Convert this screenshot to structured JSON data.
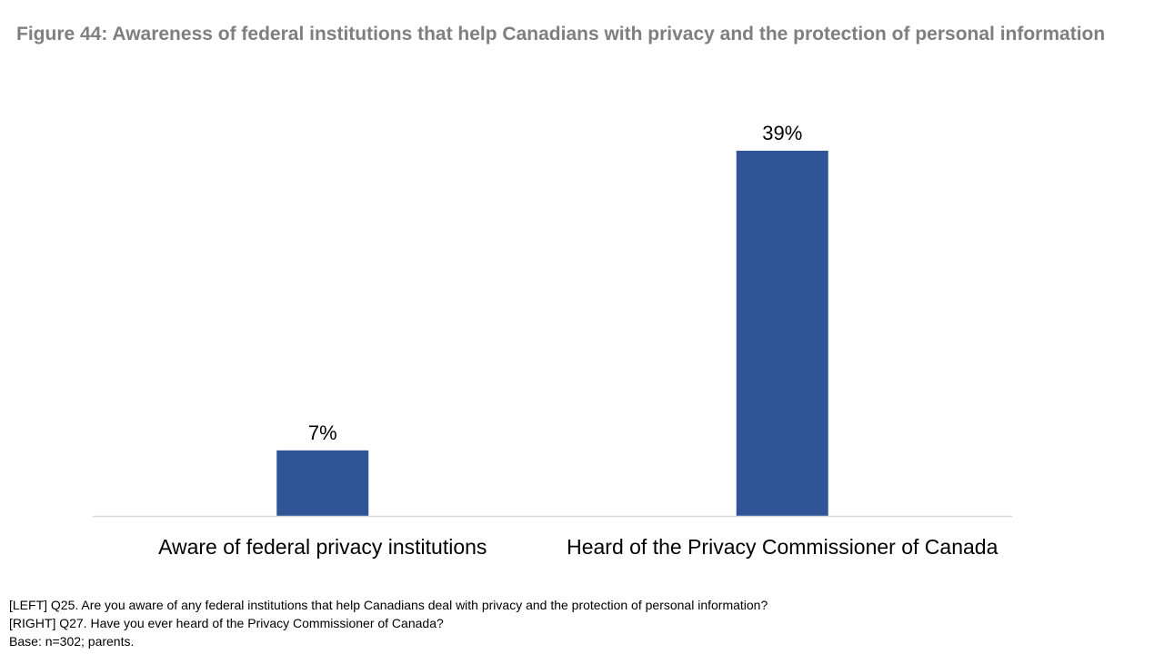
{
  "chart_data": {
    "type": "bar",
    "title": "Figure 44: Awareness of federal institutions that help Canadians with privacy and the protection of personal information",
    "categories": [
      "Aware of federal privacy institutions",
      "Heard of the Privacy Commissioner of Canada"
    ],
    "values": [
      7,
      39
    ],
    "data_labels": [
      "7%",
      "39%"
    ],
    "xlabel": "",
    "ylabel": "",
    "ylim": [
      0,
      42
    ],
    "grid": false,
    "legend": "none",
    "bar_color": "#2f5597",
    "axis_color": "#d9d9d9"
  },
  "footnotes": {
    "left_question": "[LEFT] Q25. Are you aware of any federal institutions that help Canadians deal with privacy and the protection of personal information?",
    "right_question": "[RIGHT] Q27. Have you ever heard of the Privacy Commissioner of Canada?",
    "base": "Base: n=302; parents."
  }
}
